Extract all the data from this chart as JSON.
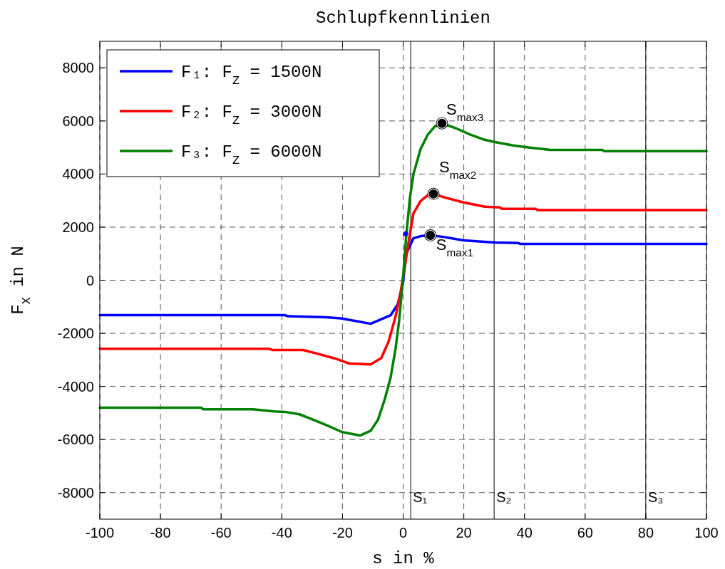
{
  "chart_data": {
    "type": "line",
    "title": "Schlupfkennlinien",
    "xlabel": "s in %",
    "ylabel": "F$_{X}$ in N",
    "xlim": [
      -100,
      100
    ],
    "xticks": [
      -100,
      -80,
      -60,
      -40,
      -20,
      0,
      20,
      40,
      60,
      80,
      100
    ],
    "ylim": [
      -9000,
      9000
    ],
    "yticks": [
      -8000,
      -6000,
      -4000,
      -2000,
      0,
      2000,
      4000,
      6000,
      8000
    ],
    "grid": true,
    "legend": "top left",
    "line_style": "solid",
    "series": [
      {
        "name": "F₁: F$_{Z}$ = 1500N",
        "color": "#0000ff",
        "x": [
          -100,
          -38.9,
          -38,
          -25.5,
          -20.6,
          -10.7,
          -4.1,
          -1.8,
          -0.1,
          1,
          3.4,
          5.75,
          9,
          12.8,
          19.9,
          30,
          38,
          38.5,
          100
        ],
        "values": [
          -1316,
          -1316,
          -1356,
          -1396,
          -1436,
          -1640,
          -1316,
          -913,
          -160,
          990,
          1580,
          1660,
          1690,
          1640,
          1500,
          1420,
          1400,
          1370,
          1370
        ]
      },
      {
        "name": "F₂: F$_{Z}$ = 3000N",
        "color": "#ff0000",
        "x": [
          -100,
          -44.3,
          -43,
          -33,
          -28.3,
          -22.4,
          -17.7,
          -10.7,
          -7.2,
          -4.8,
          -2.5,
          -0.8,
          0.35,
          2.2,
          3.4,
          5.75,
          8.1,
          10,
          14,
          19.9,
          26.9,
          32,
          32.5,
          43.8,
          44.3,
          100
        ],
        "values": [
          -2580,
          -2580,
          -2630,
          -2630,
          -2765,
          -2950,
          -3140,
          -3170,
          -2930,
          -2310,
          -1370,
          -430,
          376,
          1720,
          2520,
          2980,
          3200,
          3250,
          3110,
          2930,
          2770,
          2740,
          2690,
          2690,
          2640,
          2640
        ]
      },
      {
        "name": "F₃: F$_{Z}$ = 6000N",
        "color": "#008000",
        "x": [
          -100,
          -66.6,
          -66,
          -49.5,
          -42.4,
          -38.9,
          -34.2,
          -29.5,
          -24.8,
          -20.1,
          -14.2,
          -10.7,
          -8.3,
          -6,
          -4.1,
          -2.5,
          -1.3,
          -0.1,
          1.05,
          2.2,
          3.4,
          5.75,
          8.1,
          10.5,
          12.8,
          17.5,
          22.2,
          26.9,
          30,
          36.3,
          42.2,
          48.5,
          65.7,
          66.3,
          100
        ],
        "values": [
          -4800,
          -4800,
          -4860,
          -4860,
          -4940,
          -4960,
          -5050,
          -5260,
          -5480,
          -5720,
          -5850,
          -5670,
          -5260,
          -4460,
          -3650,
          -2580,
          -1500,
          0,
          1720,
          3060,
          4000,
          4940,
          5480,
          5800,
          5910,
          5720,
          5480,
          5290,
          5210,
          5075,
          4990,
          4910,
          4910,
          4860,
          4860
        ]
      },
      {
        "type": "scatter",
        "color": "#000000",
        "marker": "circle",
        "x": [
          9,
          10,
          12.8
        ],
        "values": [
          1690,
          3250,
          5910
        ]
      },
      {
        "type": "scatter",
        "color": "#0000ff",
        "marker": "circle",
        "x": [
          0.8
        ],
        "values": [
          1750
        ]
      }
    ],
    "annotations": [
      {
        "text": "S$_{max1}$",
        "x": 9,
        "y": 1690
      },
      {
        "text": "S$_{max2}$",
        "x": 10,
        "y": 3250
      },
      {
        "text": "S$_{max3}$",
        "x": 12.8,
        "y": 5910
      }
    ],
    "ref_lines": [
      {
        "axis": "x",
        "value": 2.5,
        "label": "S₁",
        "color": "#000000",
        "line_style": "solid"
      },
      {
        "axis": "x",
        "value": 30,
        "label": "S₂",
        "color": "#000000",
        "line_style": "solid"
      },
      {
        "axis": "x",
        "value": 80,
        "label": "S₃",
        "color": "#000000",
        "line_style": "solid"
      }
    ]
  }
}
